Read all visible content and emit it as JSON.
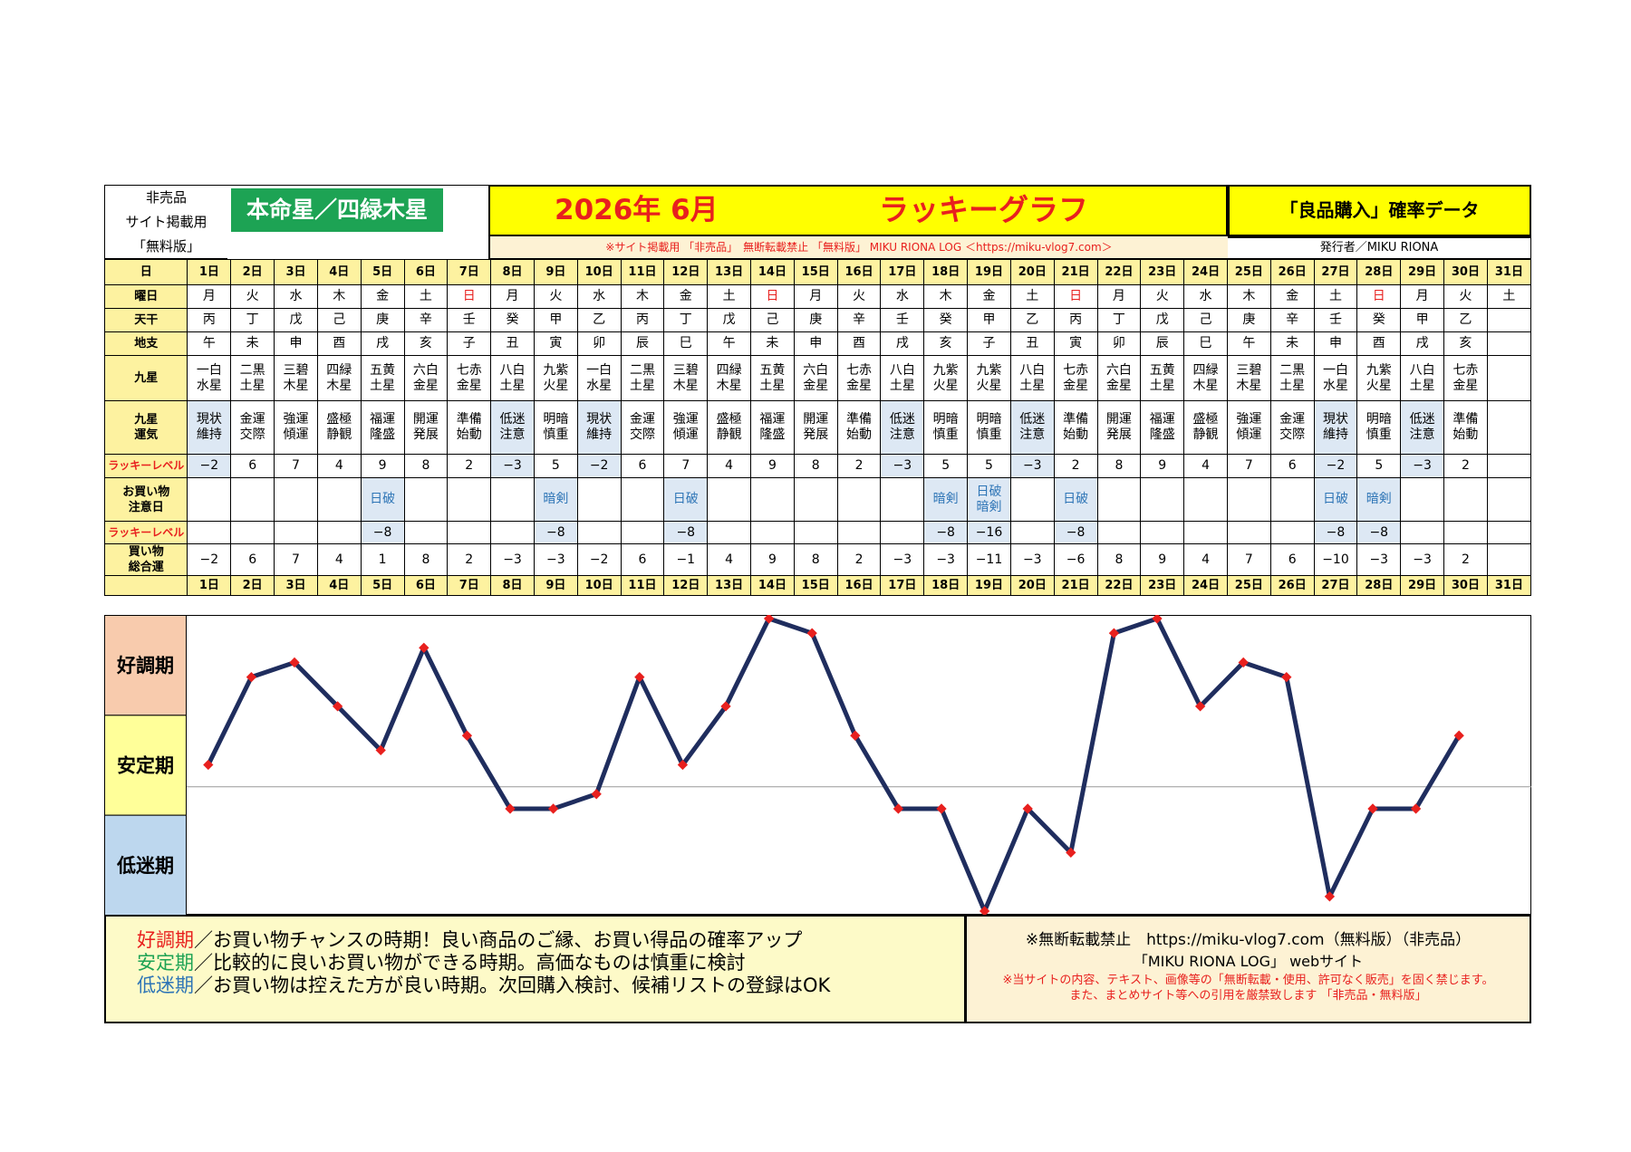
{
  "header": {
    "side_lines": [
      "非売品",
      "サイト掲載用",
      "「無料版」"
    ],
    "honmei": "本命星／四緑木星",
    "year_month": "2026年 6月",
    "graph_title": "ラッキーグラフ",
    "prob_title": "「良品購入」確率データ",
    "subline": "※サイト掲載用 「非売品」　無断転載禁止 「無料版」 MIKU RIONA LOG ＜https://miku-vlog7.com＞",
    "publisher": "発行者／MIKU RIONA"
  },
  "labels": {
    "day": "日",
    "weekday": "曜日",
    "tenkan": "天干",
    "chishi": "地支",
    "kyusei": "九星",
    "kyusei_unki": "九星運気",
    "lucky_level": "ラッキーレベル",
    "caution": "お買い物注意日",
    "lucky_level2": "ラッキーレベル",
    "total": "買い物総合運"
  },
  "days": [
    "1日",
    "2日",
    "3日",
    "4日",
    "5日",
    "6日",
    "7日",
    "8日",
    "9日",
    "10日",
    "11日",
    "12日",
    "13日",
    "14日",
    "15日",
    "16日",
    "17日",
    "18日",
    "19日",
    "20日",
    "21日",
    "22日",
    "23日",
    "24日",
    "25日",
    "26日",
    "27日",
    "28日",
    "29日",
    "30日",
    "31日"
  ],
  "weekdays": [
    "月",
    "火",
    "水",
    "木",
    "金",
    "土",
    "日",
    "月",
    "火",
    "水",
    "木",
    "金",
    "土",
    "日",
    "月",
    "火",
    "水",
    "木",
    "金",
    "土",
    "日",
    "月",
    "火",
    "水",
    "木",
    "金",
    "土",
    "日",
    "月",
    "火",
    "土"
  ],
  "tenkan": [
    "丙",
    "丁",
    "戊",
    "己",
    "庚",
    "辛",
    "壬",
    "癸",
    "甲",
    "乙",
    "丙",
    "丁",
    "戊",
    "己",
    "庚",
    "辛",
    "壬",
    "癸",
    "甲",
    "乙",
    "丙",
    "丁",
    "戊",
    "己",
    "庚",
    "辛",
    "壬",
    "癸",
    "甲",
    "乙",
    ""
  ],
  "chishi": [
    "午",
    "未",
    "申",
    "酉",
    "戌",
    "亥",
    "子",
    "丑",
    "寅",
    "卯",
    "辰",
    "巳",
    "午",
    "未",
    "申",
    "酉",
    "戌",
    "亥",
    "子",
    "丑",
    "寅",
    "卯",
    "辰",
    "巳",
    "午",
    "未",
    "申",
    "酉",
    "戌",
    "亥",
    ""
  ],
  "kyusei": [
    [
      "一白",
      "水星"
    ],
    [
      "二黒",
      "土星"
    ],
    [
      "三碧",
      "木星"
    ],
    [
      "四緑",
      "木星"
    ],
    [
      "五黄",
      "土星"
    ],
    [
      "六白",
      "金星"
    ],
    [
      "七赤",
      "金星"
    ],
    [
      "八白",
      "土星"
    ],
    [
      "九紫",
      "火星"
    ],
    [
      "一白",
      "水星"
    ],
    [
      "二黒",
      "土星"
    ],
    [
      "三碧",
      "木星"
    ],
    [
      "四緑",
      "木星"
    ],
    [
      "五黄",
      "土星"
    ],
    [
      "六白",
      "金星"
    ],
    [
      "七赤",
      "金星"
    ],
    [
      "八白",
      "土星"
    ],
    [
      "九紫",
      "火星"
    ],
    [
      "九紫",
      "火星"
    ],
    [
      "八白",
      "土星"
    ],
    [
      "七赤",
      "金星"
    ],
    [
      "六白",
      "金星"
    ],
    [
      "五黄",
      "土星"
    ],
    [
      "四緑",
      "木星"
    ],
    [
      "三碧",
      "木星"
    ],
    [
      "二黒",
      "土星"
    ],
    [
      "一白",
      "水星"
    ],
    [
      "九紫",
      "火星"
    ],
    [
      "八白",
      "土星"
    ],
    [
      "七赤",
      "金星"
    ],
    [
      "",
      ""
    ]
  ],
  "unki": [
    [
      "現状",
      "維持"
    ],
    [
      "金運",
      "交際"
    ],
    [
      "強運",
      "傾運"
    ],
    [
      "盛極",
      "静観"
    ],
    [
      "福運",
      "隆盛"
    ],
    [
      "開運",
      "発展"
    ],
    [
      "準備",
      "始動"
    ],
    [
      "低迷",
      "注意"
    ],
    [
      "明暗",
      "慎重"
    ],
    [
      "現状",
      "維持"
    ],
    [
      "金運",
      "交際"
    ],
    [
      "強運",
      "傾運"
    ],
    [
      "盛極",
      "静観"
    ],
    [
      "福運",
      "隆盛"
    ],
    [
      "開運",
      "発展"
    ],
    [
      "準備",
      "始動"
    ],
    [
      "低迷",
      "注意"
    ],
    [
      "明暗",
      "慎重"
    ],
    [
      "明暗",
      "慎重"
    ],
    [
      "低迷",
      "注意"
    ],
    [
      "準備",
      "始動"
    ],
    [
      "開運",
      "発展"
    ],
    [
      "福運",
      "隆盛"
    ],
    [
      "盛極",
      "静観"
    ],
    [
      "強運",
      "傾運"
    ],
    [
      "金運",
      "交際"
    ],
    [
      "現状",
      "維持"
    ],
    [
      "明暗",
      "慎重"
    ],
    [
      "低迷",
      "注意"
    ],
    [
      "準備",
      "始動"
    ],
    [
      "",
      ""
    ]
  ],
  "lucky": [
    "−2",
    "6",
    "7",
    "4",
    "9",
    "8",
    "2",
    "−3",
    "5",
    "−2",
    "6",
    "7",
    "4",
    "9",
    "8",
    "2",
    "−3",
    "5",
    "5",
    "−3",
    "2",
    "8",
    "9",
    "4",
    "7",
    "6",
    "−2",
    "5",
    "−3",
    "2",
    ""
  ],
  "caution": [
    [
      ""
    ],
    [
      ""
    ],
    [
      ""
    ],
    [
      ""
    ],
    [
      "日破"
    ],
    [
      ""
    ],
    [
      ""
    ],
    [
      ""
    ],
    [
      "暗剣"
    ],
    [
      ""
    ],
    [
      ""
    ],
    [
      "日破"
    ],
    [
      ""
    ],
    [
      ""
    ],
    [
      ""
    ],
    [
      ""
    ],
    [
      ""
    ],
    [
      "暗剣"
    ],
    [
      "日破",
      "暗剣"
    ],
    [
      ""
    ],
    [
      "日破"
    ],
    [
      ""
    ],
    [
      ""
    ],
    [
      ""
    ],
    [
      ""
    ],
    [
      ""
    ],
    [
      "日破"
    ],
    [
      "暗剣"
    ],
    [
      ""
    ],
    [
      ""
    ],
    [
      ""
    ]
  ],
  "lucky2": [
    "",
    "",
    "",
    "",
    "−8",
    "",
    "",
    "",
    "−8",
    "",
    "",
    "−8",
    "",
    "",
    "",
    "",
    "",
    "−8",
    "−16",
    "",
    "−8",
    "",
    "",
    "",
    "",
    "",
    "−8",
    "−8",
    "",
    "",
    ""
  ],
  "total": [
    "−2",
    "6",
    "7",
    "4",
    "1",
    "8",
    "2",
    "−3",
    "−3",
    "−2",
    "6",
    "−1",
    "4",
    "9",
    "8",
    "2",
    "−3",
    "−3",
    "−11",
    "−3",
    "−6",
    "8",
    "9",
    "4",
    "7",
    "6",
    "−10",
    "−3",
    "−3",
    "2",
    ""
  ],
  "zones": {
    "good": {
      "label": "好調期",
      "color": "#f8cbad"
    },
    "stable": {
      "label": "安定期",
      "color": "#ffff99"
    },
    "low": {
      "label": "低迷期",
      "color": "#bdd7ee"
    }
  },
  "colors": {
    "line": "#1f2d5e",
    "marker": "#e8201e",
    "label_bg": "#fdf2a0",
    "highlight_bg": "#dde8f4",
    "caution_text": "#2e75b6",
    "sunday": "#e8201e"
  },
  "chart_data": {
    "type": "line",
    "x": [
      "1日",
      "2日",
      "3日",
      "4日",
      "5日",
      "6日",
      "7日",
      "8日",
      "9日",
      "10日",
      "11日",
      "12日",
      "13日",
      "14日",
      "15日",
      "16日",
      "17日",
      "18日",
      "19日",
      "20日",
      "21日",
      "22日",
      "23日",
      "24日",
      "25日",
      "26日",
      "27日",
      "28日",
      "29日",
      "30日"
    ],
    "series": [
      {
        "values": [
          2,
          8,
          9,
          6,
          3,
          10,
          4,
          -1,
          -1,
          0,
          8,
          2,
          6,
          12,
          11,
          4,
          -1,
          -1,
          -8,
          -1,
          -4,
          11,
          12,
          6,
          9,
          8,
          -7,
          -1,
          -1,
          4
        ]
      }
    ],
    "ylim": [
      -8,
      12
    ],
    "bands": [
      "好調期",
      "安定期",
      "低迷期"
    ]
  },
  "legend": {
    "good_term": "好調期",
    "good_text": "／お買い物チャンスの時期！良い商品のご縁、お買い得品の確率アップ",
    "stable_term": "安定期",
    "stable_text": "／比較的に良いお買い物ができる時期。高価なものは慎重に検討",
    "low_term": "低迷期",
    "low_text": "／お買い物は控えた方が良い時期。次回購入検討、候補リストの登録はOK",
    "good_color": "#e8201e",
    "stable_color": "#1da354",
    "low_color": "#2e75b6"
  },
  "notice": {
    "line1": "※無断転載禁止　https://miku-vlog7.com（無料版）（非売品）",
    "line2": "「MIKU RIONA LOG」 webサイト",
    "line3": "※当サイトの内容、テキスト、画像等の「無断転載・使用、許可なく販売」を固く禁じます。",
    "line4": "また、まとめサイト等への引用を厳禁致します 「非売品・無料版」"
  }
}
